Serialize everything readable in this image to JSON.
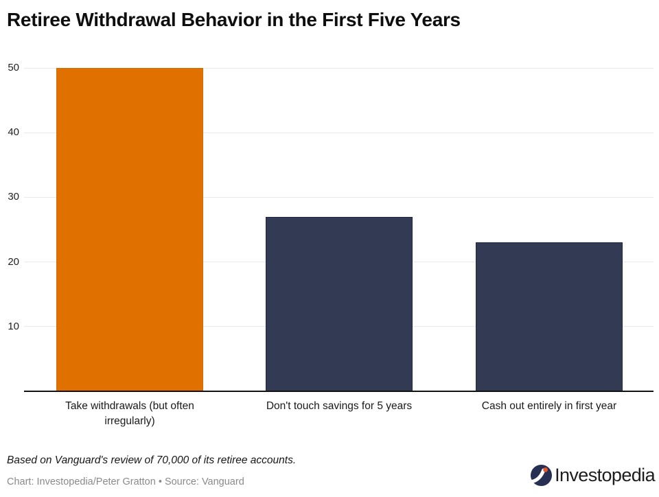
{
  "page": {
    "background": "#FFFFFF"
  },
  "chart_data": {
    "type": "bar",
    "title": "Retiree Withdrawal Behavior in the First Five Years",
    "categories": [
      "Take withdrawals (but often irregularly)",
      "Don't touch savings for 5 years",
      "Cash out entirely in first year"
    ],
    "values": [
      50,
      27,
      23
    ],
    "bar_colors": [
      "#E07000",
      "#333A54",
      "#333A54"
    ],
    "bar_border_colors": [
      "#D56C00",
      "#1F2546",
      "#1F2546"
    ],
    "yticks": [
      10,
      20,
      30,
      40,
      50
    ],
    "ylim": [
      0,
      50
    ],
    "grid": true,
    "legend": false,
    "xlabel": "",
    "ylabel": "",
    "colors": {
      "gridline": "#E9E9E9",
      "axis_line": "#111111",
      "tick_label": "#222222",
      "category_label": "#191919",
      "title": "#0E0E0E"
    }
  },
  "footer": {
    "note": "Based on Vanguard's review of 70,000 of its retiree accounts.",
    "credit": "Chart: Investopedia/Peter Gratton • Source: Vanguard"
  },
  "logo": {
    "wordmark": "Investopedia",
    "icon": "investopedia-circle-i-icon",
    "icon_bg": "#273052",
    "icon_stroke": "#FFFFFF",
    "icon_dot": "#E4572E"
  }
}
